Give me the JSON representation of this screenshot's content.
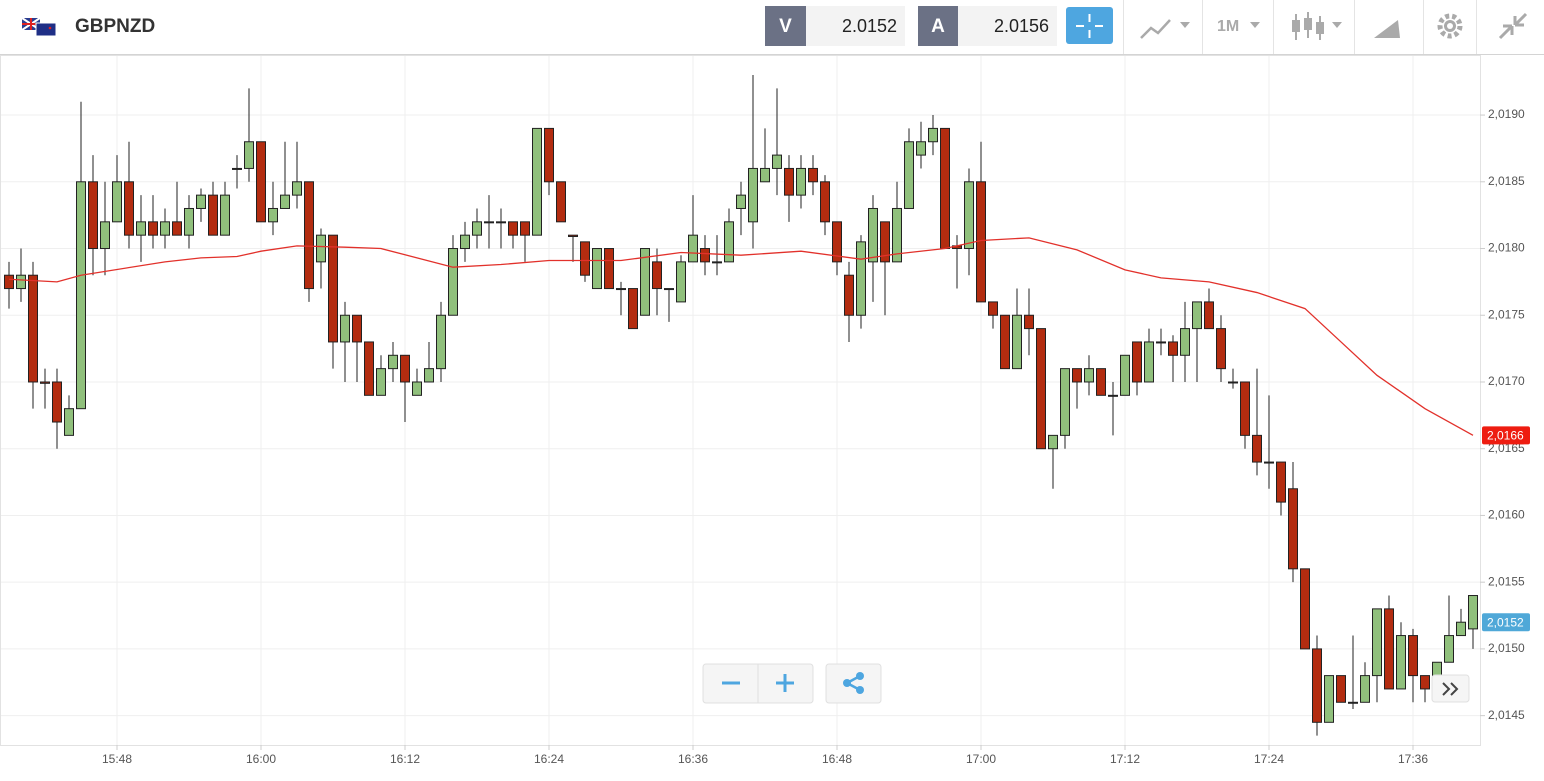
{
  "header": {
    "symbol": "GBPNZD",
    "bid_label": "V",
    "bid": "2.0152",
    "ask_label": "A",
    "ask": "2.0156",
    "timeframe": "1M"
  },
  "chart_data": {
    "type": "candlestick",
    "x": [
      "15:39",
      "15:40",
      "15:41",
      "15:42",
      "15:43",
      "15:44",
      "15:45",
      "15:46",
      "15:47",
      "15:48",
      "15:49",
      "15:50",
      "15:51",
      "15:52",
      "15:53",
      "15:54",
      "15:55",
      "15:56",
      "15:57",
      "15:58",
      "15:59",
      "16:00",
      "16:01",
      "16:02",
      "16:03",
      "16:04",
      "16:05",
      "16:06",
      "16:07",
      "16:08",
      "16:09",
      "16:10",
      "16:11",
      "16:12",
      "16:13",
      "16:14",
      "16:15",
      "16:16",
      "16:17",
      "16:18",
      "16:19",
      "16:20",
      "16:21",
      "16:22",
      "16:23",
      "16:24",
      "16:25",
      "16:26",
      "16:27",
      "16:28",
      "16:29",
      "16:30",
      "16:31",
      "16:32",
      "16:33",
      "16:34",
      "16:35",
      "16:36",
      "16:37",
      "16:38",
      "16:39",
      "16:40",
      "16:41",
      "16:42",
      "16:43",
      "16:44",
      "16:45",
      "16:46",
      "16:47",
      "16:48",
      "16:49",
      "16:50",
      "16:51",
      "16:52",
      "16:53",
      "16:54",
      "16:55",
      "16:56",
      "16:57",
      "16:58",
      "16:59",
      "17:00",
      "17:01",
      "17:02",
      "17:03",
      "17:04",
      "17:05",
      "17:06",
      "17:07",
      "17:08",
      "17:09",
      "17:10",
      "17:11",
      "17:12",
      "17:13",
      "17:14",
      "17:15",
      "17:16",
      "17:17",
      "17:18",
      "17:19",
      "17:20",
      "17:21",
      "17:22",
      "17:23",
      "17:24",
      "17:25",
      "17:26",
      "17:27",
      "17:28",
      "17:29",
      "17:30",
      "17:31",
      "17:32",
      "17:33",
      "17:34",
      "17:35",
      "17:36",
      "17:37",
      "17:38",
      "17:39",
      "17:40",
      "17:41"
    ],
    "open": [
      2.0178,
      2.0177,
      2.0178,
      2.017,
      2.017,
      2.0166,
      2.0168,
      2.0185,
      2.018,
      2.0182,
      2.0185,
      2.0181,
      2.0182,
      2.0181,
      2.0182,
      2.0181,
      2.0183,
      2.0184,
      2.0181,
      2.0186,
      2.0186,
      2.0188,
      2.0182,
      2.0183,
      2.0184,
      2.0185,
      2.0179,
      2.0181,
      2.0173,
      2.0175,
      2.0173,
      2.0169,
      2.0171,
      2.0172,
      2.0169,
      2.017,
      2.0171,
      2.0175,
      2.018,
      2.0181,
      2.0182,
      2.0182,
      2.0182,
      2.0182,
      2.0181,
      2.0189,
      2.0185,
      2.0181,
      2.01805,
      2.0177,
      2.018,
      2.0177,
      2.0177,
      2.0175,
      2.0179,
      2.0177,
      2.0176,
      2.0179,
      2.018,
      2.0179,
      2.0179,
      2.0183,
      2.0182,
      2.0185,
      2.0186,
      2.0186,
      2.0184,
      2.0186,
      2.0185,
      2.0182,
      2.0178,
      2.0175,
      2.0179,
      2.0182,
      2.0179,
      2.0183,
      2.0187,
      2.0188,
      2.0189,
      2.01802,
      2.018,
      2.0185,
      2.0176,
      2.0175,
      2.0171,
      2.0175,
      2.0174,
      2.0165,
      2.0166,
      2.0171,
      2.017,
      2.0171,
      2.0169,
      2.0169,
      2.0173,
      2.017,
      2.0173,
      2.0173,
      2.0172,
      2.0174,
      2.0176,
      2.0174,
      2.017,
      2.017,
      2.0166,
      2.0164,
      2.0164,
      2.0162,
      2.0156,
      2.015,
      2.01445,
      2.0148,
      2.0146,
      2.0146,
      2.0148,
      2.0153,
      2.0147,
      2.0151,
      2.0148,
      2.0148,
      2.0149,
      2.0151,
      2.01515
    ],
    "high": [
      2.0179,
      2.018,
      2.0179,
      2.0171,
      2.0171,
      2.0169,
      2.0191,
      2.0187,
      2.0185,
      2.0187,
      2.0188,
      2.0184,
      2.0184,
      2.0183,
      2.0185,
      2.0184,
      2.01845,
      2.0185,
      2.0185,
      2.0187,
      2.0192,
      2.0188,
      2.0185,
      2.0188,
      2.0188,
      2.0185,
      2.01815,
      2.0181,
      2.0176,
      2.0175,
      2.0173,
      2.0172,
      2.0173,
      2.0172,
      2.0171,
      2.0173,
      2.0176,
      2.0181,
      2.0182,
      2.0183,
      2.0184,
      2.0183,
      2.0182,
      2.0182,
      2.0189,
      2.0189,
      2.0185,
      2.0181,
      2.01805,
      2.018,
      2.018,
      2.01775,
      2.0177,
      2.018,
      2.018,
      2.0177,
      2.01795,
      2.0184,
      2.0181,
      2.0181,
      2.0183,
      2.0185,
      2.0193,
      2.0189,
      2.0192,
      2.0187,
      2.0187,
      2.0187,
      2.01855,
      2.0182,
      2.0179,
      2.0181,
      2.0184,
      2.0182,
      2.0185,
      2.0189,
      2.01895,
      2.019,
      2.0189,
      2.0181,
      2.0186,
      2.0188,
      2.0176,
      2.0175,
      2.0177,
      2.0177,
      2.0174,
      2.0166,
      2.0171,
      2.0171,
      2.0172,
      2.0171,
      2.017,
      2.0172,
      2.0173,
      2.0174,
      2.0174,
      2.01735,
      2.0176,
      2.0176,
      2.0177,
      2.0175,
      2.0171,
      2.017,
      2.0171,
      2.0169,
      2.0164,
      2.0164,
      2.0156,
      2.0151,
      2.0148,
      2.0148,
      2.0151,
      2.0149,
      2.0153,
      2.0154,
      2.0152,
      2.01515,
      2.0148,
      2.0149,
      2.0154,
      2.0153,
      2.0154
    ],
    "low": [
      2.01755,
      2.0176,
      2.0168,
      2.0168,
      2.0165,
      2.0166,
      2.0168,
      2.0178,
      2.0178,
      2.0182,
      2.018,
      2.0179,
      2.018,
      2.018,
      2.0181,
      2.018,
      2.0182,
      2.0181,
      2.0181,
      2.01845,
      2.0185,
      2.0182,
      2.0181,
      2.0183,
      2.0183,
      2.0176,
      2.0177,
      2.0171,
      2.017,
      2.017,
      2.0169,
      2.0169,
      2.017,
      2.0167,
      2.0169,
      2.017,
      2.017,
      2.0175,
      2.0179,
      2.018,
      2.018,
      2.018,
      2.018,
      2.0179,
      2.0181,
      2.0184,
      2.0182,
      2.0179,
      2.01775,
      2.0177,
      2.0177,
      2.0175,
      2.0174,
      2.0175,
      2.0175,
      2.01745,
      2.0176,
      2.0179,
      2.0178,
      2.0178,
      2.0179,
      2.0181,
      2.018,
      2.0185,
      2.0184,
      2.0182,
      2.0183,
      2.0184,
      2.0181,
      2.0178,
      2.0173,
      2.0174,
      2.0176,
      2.0175,
      2.0179,
      2.0183,
      2.0186,
      2.0187,
      2.018,
      2.0177,
      2.0178,
      2.0176,
      2.0174,
      2.0171,
      2.0171,
      2.0172,
      2.0165,
      2.0162,
      2.0165,
      2.0168,
      2.0169,
      2.0169,
      2.0166,
      2.0169,
      2.0169,
      2.017,
      2.0172,
      2.017,
      2.017,
      2.017,
      2.0174,
      2.017,
      2.01695,
      2.0165,
      2.0163,
      2.0162,
      2.016,
      2.0155,
      2.015,
      2.01435,
      2.01445,
      2.0146,
      2.01455,
      2.0146,
      2.0146,
      2.0147,
      2.0147,
      2.0146,
      2.0146,
      2.0146,
      2.0149,
      2.0151,
      2.015
    ],
    "close": [
      2.0177,
      2.0178,
      2.017,
      2.01699,
      2.0167,
      2.0168,
      2.0185,
      2.018,
      2.0182,
      2.0185,
      2.0181,
      2.0182,
      2.0181,
      2.0182,
      2.0181,
      2.0183,
      2.0184,
      2.0181,
      2.0184,
      2.0186,
      2.0188,
      2.0182,
      2.0183,
      2.0184,
      2.0185,
      2.0177,
      2.0181,
      2.0173,
      2.0175,
      2.0173,
      2.0169,
      2.0171,
      2.0172,
      2.017,
      2.017,
      2.0171,
      2.0175,
      2.018,
      2.0181,
      2.0182,
      2.0182,
      2.0182,
      2.0181,
      2.0181,
      2.0189,
      2.0185,
      2.0182,
      2.01809,
      2.0178,
      2.018,
      2.0177,
      2.0177,
      2.0174,
      2.018,
      2.0177,
      2.0177,
      2.0179,
      2.0181,
      2.0179,
      2.0179,
      2.0182,
      2.0184,
      2.0186,
      2.0186,
      2.0187,
      2.0184,
      2.0186,
      2.0185,
      2.0182,
      2.0179,
      2.0175,
      2.01805,
      2.0183,
      2.0179,
      2.0183,
      2.0188,
      2.0188,
      2.0189,
      2.018,
      2.018,
      2.0185,
      2.0176,
      2.0175,
      2.0171,
      2.0175,
      2.0174,
      2.0165,
      2.0166,
      2.0171,
      2.017,
      2.0171,
      2.0169,
      2.0169,
      2.0172,
      2.017,
      2.0173,
      2.0173,
      2.0172,
      2.0174,
      2.0176,
      2.0174,
      2.0171,
      2.017,
      2.0166,
      2.0164,
      2.0164,
      2.0161,
      2.0156,
      2.015,
      2.01445,
      2.0148,
      2.0146,
      2.0146,
      2.0148,
      2.0153,
      2.0147,
      2.0151,
      2.0148,
      2.0147,
      2.0149,
      2.0151,
      2.0152,
      2.0154
    ],
    "up_color": "#90c07c",
    "down_color": "#b32c10",
    "moving_average": {
      "color": "#e2312b",
      "x": [
        "15:39",
        "15:43",
        "15:45",
        "15:52",
        "15:55",
        "15:58",
        "16:00",
        "16:03",
        "16:07",
        "16:10",
        "16:13",
        "16:16",
        "16:20",
        "16:24",
        "16:30",
        "16:35",
        "16:40",
        "16:45",
        "16:50",
        "16:53",
        "16:57",
        "17:00",
        "17:04",
        "17:08",
        "17:12",
        "17:15",
        "17:19",
        "17:23",
        "17:27",
        "17:30",
        "17:33",
        "17:37",
        "17:41"
      ],
      "values": [
        2.01777,
        2.01775,
        2.0178,
        2.0179,
        2.01793,
        2.01794,
        2.01798,
        2.01802,
        2.01801,
        2.018,
        2.01793,
        2.01786,
        2.01788,
        2.01791,
        2.01791,
        2.01797,
        2.01795,
        2.01798,
        2.01792,
        2.01796,
        2.018,
        2.01806,
        2.01808,
        2.01799,
        2.01784,
        2.01778,
        2.01775,
        2.01767,
        2.01755,
        2.0173,
        2.01705,
        2.0168,
        2.0166
      ]
    },
    "price_tags": [
      {
        "value": 2.0166,
        "label": "2,0166",
        "color": "#ee1c10"
      },
      {
        "value": 2.0152,
        "label": "2,0152",
        "color": "#4fa8d8"
      }
    ],
    "ylim": [
      2.01428,
      2.01945
    ],
    "yticks": [
      {
        "value": 2.0145,
        "label": "2,0145"
      },
      {
        "value": 2.015,
        "label": "2,0150"
      },
      {
        "value": 2.0155,
        "label": "2,0155"
      },
      {
        "value": 2.016,
        "label": "2,0160"
      },
      {
        "value": 2.0165,
        "label": "2,0165"
      },
      {
        "value": 2.017,
        "label": "2,0170"
      },
      {
        "value": 2.0175,
        "label": "2,0175"
      },
      {
        "value": 2.018,
        "label": "2,0180"
      },
      {
        "value": 2.0185,
        "label": "2,0185"
      },
      {
        "value": 2.019,
        "label": "2,0190"
      }
    ],
    "xticks": [
      "15:48",
      "16:00",
      "16:12",
      "16:24",
      "16:36",
      "16:48",
      "17:00",
      "17:12",
      "17:24",
      "17:36"
    ],
    "grid": true
  }
}
